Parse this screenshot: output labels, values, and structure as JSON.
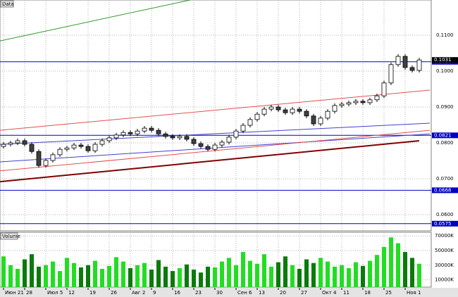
{
  "chart_data": {
    "type": "candlestick",
    "title": "Data",
    "categories": [
      "Июн 21",
      null,
      null,
      "28",
      null,
      null,
      "Июл 5",
      null,
      null,
      "12",
      null,
      null,
      "19",
      null,
      null,
      "26",
      null,
      null,
      "Авг 2",
      null,
      null,
      "9",
      null,
      null,
      "16",
      null,
      null,
      "23",
      null,
      null,
      "30",
      null,
      null,
      "Сен 6",
      null,
      null,
      "13",
      null,
      null,
      "20",
      null,
      null,
      "27",
      null,
      null,
      "Окт 4",
      null,
      null,
      "11",
      null,
      null,
      "18",
      null,
      null,
      "25",
      null,
      null,
      "Ноя 1",
      null,
      null
    ],
    "open": [
      0.079,
      0.0796,
      0.08,
      0.0806,
      0.0796,
      0.0776,
      0.0737,
      0.0751,
      0.0767,
      0.0782,
      0.0786,
      0.0794,
      0.079,
      0.0778,
      0.0796,
      0.0806,
      0.0814,
      0.0822,
      0.0829,
      0.0825,
      0.0833,
      0.0841,
      0.0835,
      0.0825,
      0.0818,
      0.0814,
      0.0818,
      0.081,
      0.0798,
      0.079,
      0.0782,
      0.0794,
      0.0802,
      0.0816,
      0.0833,
      0.0849,
      0.0865,
      0.088,
      0.0894,
      0.09,
      0.0892,
      0.0884,
      0.0894,
      0.0888,
      0.0875,
      0.0853,
      0.0869,
      0.0888,
      0.0904,
      0.0908,
      0.0912,
      0.0916,
      0.0912,
      0.092,
      0.0931,
      0.0967,
      0.1018,
      0.1041,
      0.101,
      0.1002
    ],
    "high": [
      0.0802,
      0.0806,
      0.0812,
      0.0812,
      0.0802,
      0.0782,
      0.0757,
      0.0773,
      0.0788,
      0.0792,
      0.08,
      0.08,
      0.0796,
      0.0802,
      0.0812,
      0.082,
      0.0828,
      0.0835,
      0.0835,
      0.0839,
      0.0847,
      0.0847,
      0.0841,
      0.0831,
      0.0824,
      0.0824,
      0.0824,
      0.0816,
      0.0804,
      0.0796,
      0.08,
      0.0808,
      0.0822,
      0.0839,
      0.0855,
      0.0871,
      0.0886,
      0.09,
      0.0906,
      0.0906,
      0.0898,
      0.09,
      0.09,
      0.0894,
      0.0881,
      0.0875,
      0.0894,
      0.091,
      0.0914,
      0.0918,
      0.0922,
      0.0922,
      0.0926,
      0.0937,
      0.0973,
      0.1024,
      0.1047,
      0.1047,
      0.1016,
      0.1037
    ],
    "low": [
      0.0784,
      0.079,
      0.0794,
      0.079,
      0.077,
      0.0731,
      0.0731,
      0.0745,
      0.0761,
      0.0776,
      0.078,
      0.0784,
      0.0772,
      0.0772,
      0.079,
      0.08,
      0.0808,
      0.0816,
      0.0819,
      0.0819,
      0.0827,
      0.0829,
      0.0819,
      0.0812,
      0.0808,
      0.0808,
      0.0804,
      0.0792,
      0.0784,
      0.0776,
      0.0776,
      0.0788,
      0.0796,
      0.081,
      0.0827,
      0.0843,
      0.0859,
      0.0874,
      0.0888,
      0.0886,
      0.0878,
      0.0878,
      0.0882,
      0.0869,
      0.0847,
      0.0847,
      0.0863,
      0.0882,
      0.0898,
      0.0902,
      0.0906,
      0.0906,
      0.0906,
      0.0914,
      0.0925,
      0.0961,
      0.1012,
      0.1004,
      0.0996,
      0.0996
    ],
    "close": [
      0.0796,
      0.08,
      0.0806,
      0.0796,
      0.0776,
      0.0737,
      0.0751,
      0.0767,
      0.0782,
      0.0786,
      0.0794,
      0.079,
      0.0778,
      0.0796,
      0.0806,
      0.0814,
      0.0822,
      0.0829,
      0.0825,
      0.0833,
      0.0841,
      0.0835,
      0.0825,
      0.0818,
      0.0814,
      0.0818,
      0.081,
      0.0798,
      0.079,
      0.0782,
      0.0794,
      0.0802,
      0.0816,
      0.0833,
      0.0849,
      0.0865,
      0.088,
      0.0894,
      0.09,
      0.0892,
      0.0884,
      0.0894,
      0.0888,
      0.0875,
      0.0853,
      0.0869,
      0.0888,
      0.0904,
      0.0908,
      0.0912,
      0.0916,
      0.0912,
      0.092,
      0.0931,
      0.0967,
      0.1018,
      0.1041,
      0.101,
      0.1002,
      0.1031
    ],
    "up_color": "#ffffff",
    "down_color": "#404040",
    "ylim": [
      0.0555,
      0.1198
    ],
    "yticks": [
      {
        "value": 0.11,
        "label": "0.1100"
      },
      {
        "value": 0.1,
        "label": "0.1000"
      },
      {
        "value": 0.09,
        "label": "0.0900"
      },
      {
        "value": 0.08,
        "label": "0.0800"
      },
      {
        "value": 0.07,
        "label": "0.0700"
      },
      {
        "value": 0.06,
        "label": "0.0600"
      }
    ],
    "grid": true,
    "levels": [
      {
        "value": 0.1026,
        "color": "#0000c0"
      },
      {
        "value": 0.0821,
        "color": "#0000c0"
      },
      {
        "value": 0.0668,
        "color": "#0000c0"
      },
      {
        "value": 0.0575,
        "color": "#0000c0"
      }
    ],
    "trendlines": [
      {
        "color": "#2e9a2e",
        "start": [
          -0.5,
          0.1084
        ],
        "end": [
          26.5,
          0.1198
        ]
      },
      {
        "color": "#e05050",
        "start": [
          -0.5,
          0.0835
        ],
        "end": [
          60.5,
          0.0947
        ]
      },
      {
        "color": "#4040d0",
        "start": [
          -0.5,
          0.0796
        ],
        "end": [
          60.5,
          0.0855
        ]
      },
      {
        "color": "#4040d0",
        "start": [
          -0.5,
          0.0747
        ],
        "end": [
          60.5,
          0.0825
        ]
      },
      {
        "color": "#e05050",
        "start": [
          -0.5,
          0.0722
        ],
        "end": [
          60.5,
          0.0835
        ]
      },
      {
        "color": "#800000",
        "start": [
          -0.5,
          0.0692
        ],
        "end": [
          59.0,
          0.0806
        ]
      }
    ],
    "volume": {
      "title": "Volume",
      "values": [
        42000,
        30000,
        25000,
        38000,
        45000,
        28000,
        30000,
        35000,
        22000,
        40000,
        33000,
        27000,
        30000,
        36000,
        25000,
        29000,
        41000,
        35000,
        26000,
        30000,
        33000,
        24000,
        37000,
        28000,
        22000,
        26000,
        31000,
        24000,
        20000,
        28000,
        27000,
        35000,
        40000,
        30000,
        48000,
        36000,
        32000,
        45000,
        28000,
        34000,
        42000,
        30000,
        25000,
        38000,
        33000,
        40000,
        35000,
        28000,
        30000,
        26000,
        34000,
        29000,
        36000,
        44000,
        55000,
        68000,
        60000,
        48000,
        40000,
        32000
      ],
      "up_color": "#22dd22",
      "down_color": "#0a7a0a",
      "ylim": [
        0,
        75000
      ],
      "yticks": [
        {
          "value": 10000,
          "label": "10000K"
        },
        {
          "value": 30000,
          "label": "30000K"
        },
        {
          "value": 50000,
          "label": "50000K"
        },
        {
          "value": 70000,
          "label": "70000K"
        }
      ]
    }
  }
}
